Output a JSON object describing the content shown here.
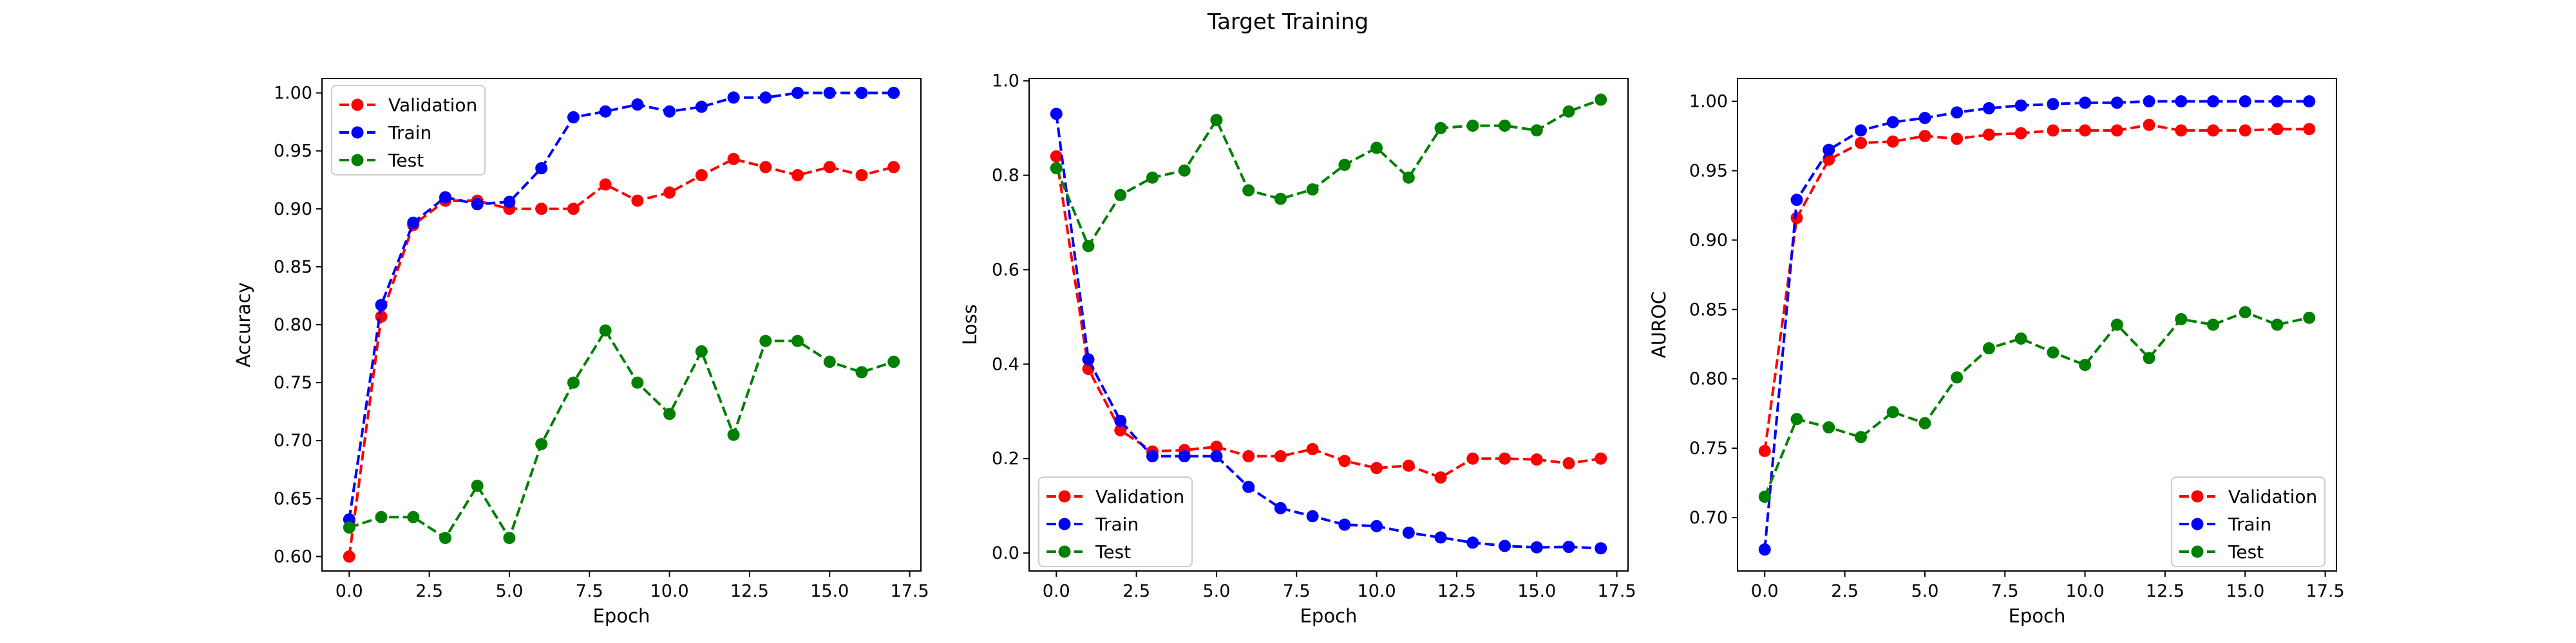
{
  "figure": {
    "title": "Target Training"
  },
  "chart_data": [
    {
      "type": "line",
      "title": "",
      "xlabel": "Epoch",
      "ylabel": "Accuracy",
      "xlim": [
        -0.85,
        17.85
      ],
      "ylim": [
        0.5875,
        1.0125
      ],
      "xticks": [
        0.0,
        2.5,
        5.0,
        7.5,
        10.0,
        12.5,
        15.0,
        17.5
      ],
      "xtick_labels": [
        "0.0",
        "2.5",
        "5.0",
        "7.5",
        "10.0",
        "12.5",
        "15.0",
        "17.5"
      ],
      "yticks": [
        0.6,
        0.65,
        0.7,
        0.75,
        0.8,
        0.85,
        0.9,
        0.95,
        1.0
      ],
      "ytick_labels": [
        "0.60",
        "0.65",
        "0.70",
        "0.75",
        "0.80",
        "0.85",
        "0.90",
        "0.95",
        "1.00"
      ],
      "legend_position": "upper-left",
      "grid": false,
      "x": [
        0,
        1,
        2,
        3,
        4,
        5,
        6,
        7,
        8,
        9,
        10,
        11,
        12,
        13,
        14,
        15,
        16,
        17
      ],
      "series": [
        {
          "name": "Validation",
          "color": "#ff0000",
          "values": [
            0.6,
            0.807,
            0.886,
            0.907,
            0.907,
            0.9,
            0.9,
            0.9,
            0.921,
            0.907,
            0.914,
            0.929,
            0.943,
            0.936,
            0.929,
            0.936,
            0.929,
            0.936
          ]
        },
        {
          "name": "Train",
          "color": "#0000ff",
          "values": [
            0.632,
            0.817,
            0.888,
            0.91,
            0.904,
            0.906,
            0.935,
            0.979,
            0.984,
            0.99,
            0.984,
            0.988,
            0.996,
            0.996,
            1.0,
            1.0,
            1.0,
            1.0
          ]
        },
        {
          "name": "Test",
          "color": "#008000",
          "values": [
            0.625,
            0.634,
            0.634,
            0.616,
            0.661,
            0.616,
            0.697,
            0.75,
            0.795,
            0.75,
            0.723,
            0.777,
            0.705,
            0.786,
            0.786,
            0.768,
            0.759,
            0.768
          ]
        }
      ]
    },
    {
      "type": "line",
      "title": "",
      "xlabel": "Epoch",
      "ylabel": "Loss",
      "xlim": [
        -0.85,
        17.85
      ],
      "ylim": [
        -0.038,
        1.005
      ],
      "xticks": [
        0.0,
        2.5,
        5.0,
        7.5,
        10.0,
        12.5,
        15.0,
        17.5
      ],
      "xtick_labels": [
        "0.0",
        "2.5",
        "5.0",
        "7.5",
        "10.0",
        "12.5",
        "15.0",
        "17.5"
      ],
      "yticks": [
        0.0,
        0.2,
        0.4,
        0.6,
        0.8,
        1.0
      ],
      "ytick_labels": [
        "0.0",
        "0.2",
        "0.4",
        "0.6",
        "0.8",
        "1.0"
      ],
      "legend_position": "lower-left",
      "grid": false,
      "x": [
        0,
        1,
        2,
        3,
        4,
        5,
        6,
        7,
        8,
        9,
        10,
        11,
        12,
        13,
        14,
        15,
        16,
        17
      ],
      "series": [
        {
          "name": "Validation",
          "color": "#ff0000",
          "values": [
            0.84,
            0.39,
            0.26,
            0.215,
            0.218,
            0.225,
            0.205,
            0.205,
            0.22,
            0.195,
            0.18,
            0.185,
            0.16,
            0.2,
            0.2,
            0.198,
            0.19,
            0.2
          ]
        },
        {
          "name": "Train",
          "color": "#0000ff",
          "values": [
            0.93,
            0.41,
            0.28,
            0.205,
            0.205,
            0.205,
            0.14,
            0.095,
            0.078,
            0.06,
            0.057,
            0.043,
            0.033,
            0.022,
            0.015,
            0.012,
            0.013,
            0.01
          ]
        },
        {
          "name": "Test",
          "color": "#008000",
          "values": [
            0.815,
            0.65,
            0.758,
            0.795,
            0.81,
            0.917,
            0.768,
            0.75,
            0.77,
            0.822,
            0.858,
            0.795,
            0.9,
            0.905,
            0.905,
            0.895,
            0.935,
            0.96
          ]
        }
      ]
    },
    {
      "type": "line",
      "title": "",
      "xlabel": "Epoch",
      "ylabel": "AUROC",
      "xlim": [
        -0.85,
        17.85
      ],
      "ylim": [
        0.6615,
        1.0165
      ],
      "xticks": [
        0.0,
        2.5,
        5.0,
        7.5,
        10.0,
        12.5,
        15.0,
        17.5
      ],
      "xtick_labels": [
        "0.0",
        "2.5",
        "5.0",
        "7.5",
        "10.0",
        "12.5",
        "15.0",
        "17.5"
      ],
      "yticks": [
        0.7,
        0.75,
        0.8,
        0.85,
        0.9,
        0.95,
        1.0
      ],
      "ytick_labels": [
        "0.70",
        "0.75",
        "0.80",
        "0.85",
        "0.90",
        "0.95",
        "1.00"
      ],
      "legend_position": "lower-right",
      "grid": false,
      "x": [
        0,
        1,
        2,
        3,
        4,
        5,
        6,
        7,
        8,
        9,
        10,
        11,
        12,
        13,
        14,
        15,
        16,
        17
      ],
      "series": [
        {
          "name": "Validation",
          "color": "#ff0000",
          "values": [
            0.748,
            0.916,
            0.958,
            0.97,
            0.971,
            0.975,
            0.973,
            0.976,
            0.977,
            0.979,
            0.979,
            0.979,
            0.983,
            0.979,
            0.979,
            0.979,
            0.98,
            0.98
          ]
        },
        {
          "name": "Train",
          "color": "#0000ff",
          "values": [
            0.677,
            0.929,
            0.965,
            0.979,
            0.985,
            0.988,
            0.992,
            0.995,
            0.997,
            0.998,
            0.999,
            0.999,
            1.0,
            1.0,
            1.0,
            1.0,
            1.0,
            1.0
          ]
        },
        {
          "name": "Test",
          "color": "#008000",
          "values": [
            0.715,
            0.771,
            0.765,
            0.758,
            0.776,
            0.768,
            0.801,
            0.822,
            0.829,
            0.819,
            0.81,
            0.839,
            0.815,
            0.843,
            0.839,
            0.848,
            0.839,
            0.844
          ]
        }
      ]
    }
  ]
}
